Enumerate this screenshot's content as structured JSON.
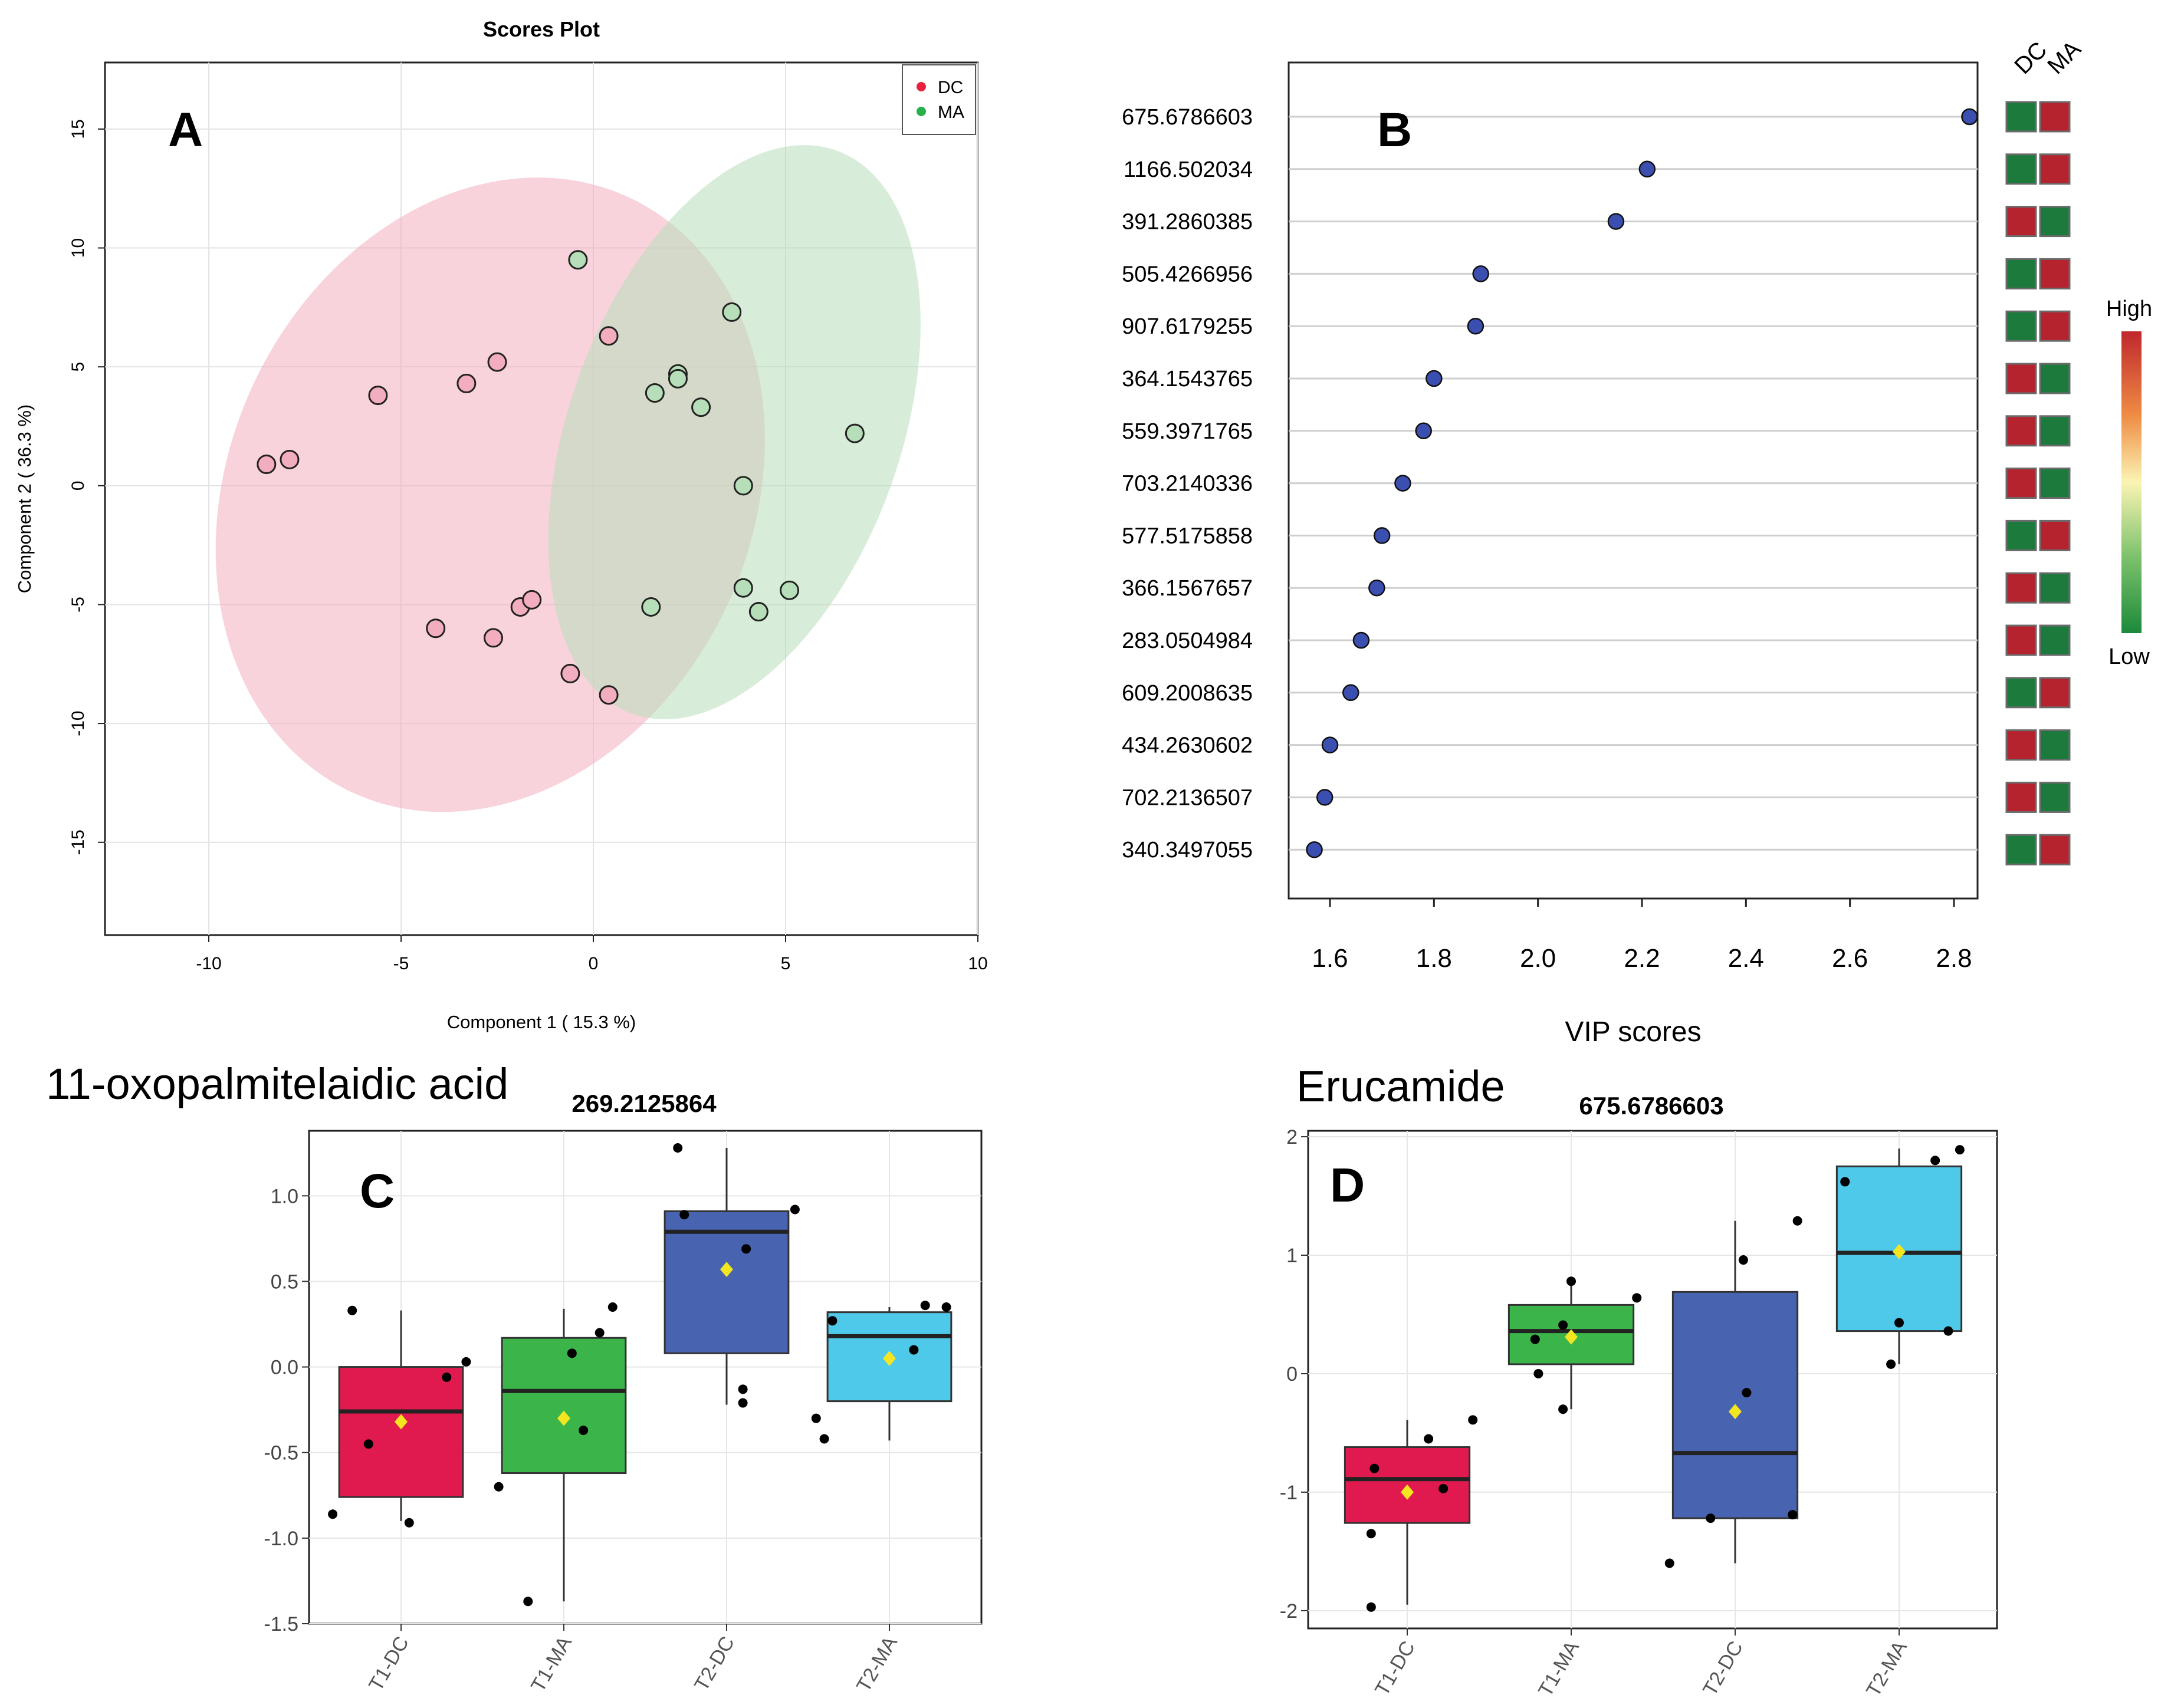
{
  "chart_data": [
    {
      "panel": "A",
      "type": "scatter",
      "title": "Scores Plot",
      "xlabel": "Component 1 ( 15.3 %)",
      "ylabel": "Component 2 ( 36.3 %)",
      "xlim": [
        -12.7,
        10.0
      ],
      "ylim": [
        -18.9,
        17.8
      ],
      "xticks": [
        "-10",
        "-5",
        "0",
        "5",
        "10"
      ],
      "xtick_values": [
        -10,
        -5,
        0,
        5,
        10
      ],
      "yticks": [
        "-15",
        "-10",
        "-5",
        "0",
        "5",
        "10",
        "15"
      ],
      "ytick_values": [
        -15,
        -10,
        -5,
        0,
        5,
        10,
        15
      ],
      "grid": true,
      "legend_position": "top-right",
      "series": [
        {
          "name": "DC",
          "color": "#e8213f",
          "fill": "#f2aebe",
          "points": [
            [
              -8.5,
              0.9
            ],
            [
              -7.9,
              1.1
            ],
            [
              -5.6,
              3.8
            ],
            [
              -3.3,
              4.3
            ],
            [
              -2.5,
              5.2
            ],
            [
              0.4,
              6.3
            ],
            [
              -4.1,
              -6.0
            ],
            [
              -2.6,
              -6.4
            ],
            [
              -1.9,
              -5.1
            ],
            [
              -1.6,
              -4.8
            ],
            [
              -0.6,
              -7.9
            ],
            [
              0.4,
              -8.8
            ]
          ],
          "ellipse": {
            "cx": -2.68,
            "cy": -0.38,
            "rx": 6.8,
            "ry": 13.8,
            "rotation_deg": 25
          }
        },
        {
          "name": "MA",
          "color": "#25b04a",
          "fill": "#b6dfb9",
          "points": [
            [
              -0.4,
              9.5
            ],
            [
              3.6,
              7.3
            ],
            [
              2.2,
              4.7
            ],
            [
              2.2,
              4.5
            ],
            [
              1.6,
              3.9
            ],
            [
              2.8,
              3.3
            ],
            [
              6.8,
              2.2
            ],
            [
              3.9,
              0.0
            ],
            [
              1.5,
              -5.1
            ],
            [
              3.9,
              -4.3
            ],
            [
              4.3,
              -5.3
            ],
            [
              5.1,
              -4.4
            ]
          ],
          "ellipse": {
            "cx": 3.67,
            "cy": 2.25,
            "rx": 4.3,
            "ry": 12.6,
            "rotation_deg": 20
          }
        }
      ]
    },
    {
      "panel": "B",
      "type": "scatter",
      "xlabel": "VIP scores",
      "xlim": [
        1.52,
        2.88
      ],
      "xticks": [
        "1.6",
        "1.8",
        "2.0",
        "2.2",
        "2.4",
        "2.6",
        "2.8"
      ],
      "xtick_values": [
        1.6,
        1.8,
        2.0,
        2.2,
        2.4,
        2.6,
        2.8
      ],
      "heatmap_columns": [
        "DC",
        "MA"
      ],
      "legend_high": "High",
      "legend_low": "Low",
      "colors": {
        "high": "#b5232f",
        "low": "#1c7a3d",
        "point": "#3b4fb0"
      },
      "features": [
        "675.6786603",
        "1166.502034",
        "391.2860385",
        "505.4266956",
        "907.6179255",
        "364.1543765",
        "559.3971765",
        "703.2140336",
        "577.5175858",
        "366.1567657",
        "283.0504984",
        "609.2008635",
        "434.2630602",
        "702.2136507",
        "340.3497055"
      ],
      "values": [
        2.83,
        2.21,
        2.15,
        1.89,
        1.88,
        1.8,
        1.78,
        1.74,
        1.7,
        1.69,
        1.66,
        1.64,
        1.6,
        1.59,
        1.57
      ],
      "dc_high": [
        false,
        false,
        true,
        false,
        false,
        true,
        true,
        true,
        false,
        true,
        true,
        false,
        true,
        true,
        false
      ]
    },
    {
      "panel": "C",
      "type": "box",
      "compound": "11-oxopalmitelaidic acid",
      "title": "269.2125864",
      "categories": [
        "T1-DC",
        "T1-MA",
        "T2-DC",
        "T2-MA"
      ],
      "colors": [
        "#e01a4f",
        "#3bb54a",
        "#4863b0",
        "#4ec9ea"
      ],
      "ylim": [
        -1.5,
        1.38
      ],
      "yticks": [
        "-1.5",
        "-1.0",
        "-0.5",
        "0.0",
        "0.5",
        "1.0"
      ],
      "ytick_values": [
        -1.5,
        -1.0,
        -0.5,
        0.0,
        0.5,
        1.0
      ],
      "boxes": [
        {
          "whisker_low": -0.9,
          "q1": -0.76,
          "median": -0.26,
          "q3": 0.0,
          "whisker_high": 0.33,
          "mean": -0.32
        },
        {
          "whisker_low": -1.37,
          "q1": -0.62,
          "median": -0.14,
          "q3": 0.17,
          "whisker_high": 0.34,
          "mean": -0.3
        },
        {
          "whisker_low": -0.22,
          "q1": 0.08,
          "median": 0.79,
          "q3": 0.91,
          "whisker_high": 1.28,
          "mean": 0.57
        },
        {
          "whisker_low": -0.43,
          "q1": -0.2,
          "median": 0.18,
          "q3": 0.32,
          "whisker_high": 0.35,
          "mean": 0.05
        }
      ],
      "points": [
        [
          [
            -0.3,
            0.33
          ],
          [
            -0.2,
            -0.45
          ],
          [
            0.05,
            -0.91
          ],
          [
            0.28,
            -0.06
          ],
          [
            0.4,
            0.03
          ],
          [
            -0.42,
            -0.86
          ]
        ],
        [
          [
            -0.4,
            -0.7
          ],
          [
            -0.22,
            -1.37
          ],
          [
            0.05,
            0.08
          ],
          [
            0.12,
            -0.37
          ],
          [
            0.22,
            0.2
          ],
          [
            0.3,
            0.35
          ]
        ],
        [
          [
            -0.3,
            1.28
          ],
          [
            -0.26,
            0.89
          ],
          [
            0.12,
            0.69
          ],
          [
            0.1,
            -0.13
          ],
          [
            0.1,
            -0.21
          ],
          [
            0.42,
            0.92
          ]
        ],
        [
          [
            -0.45,
            -0.3
          ],
          [
            -0.4,
            -0.42
          ],
          [
            -0.35,
            0.27
          ],
          [
            0.15,
            0.1
          ],
          [
            0.22,
            0.36
          ],
          [
            0.35,
            0.35
          ]
        ]
      ]
    },
    {
      "panel": "D",
      "type": "box",
      "compound": "Erucamide",
      "title": "675.6786603",
      "categories": [
        "T1-DC",
        "T1-MA",
        "T2-DC",
        "T2-MA"
      ],
      "colors": [
        "#e01a4f",
        "#3bb54a",
        "#4863b0",
        "#4ec9ea"
      ],
      "ylim": [
        -2.15,
        2.05
      ],
      "yticks": [
        "-2",
        "-1",
        "0",
        "1",
        "2"
      ],
      "ytick_values": [
        -2,
        -1,
        0,
        1,
        2
      ],
      "boxes": [
        {
          "whisker_low": -1.95,
          "q1": -1.26,
          "median": -0.89,
          "q3": -0.62,
          "whisker_high": -0.39,
          "mean": -1.0
        },
        {
          "whisker_low": -0.3,
          "q1": 0.08,
          "median": 0.36,
          "q3": 0.58,
          "whisker_high": 0.78,
          "mean": 0.31
        },
        {
          "whisker_low": -1.6,
          "q1": -1.22,
          "median": -0.67,
          "q3": 0.69,
          "whisker_high": 1.29,
          "mean": -0.32
        },
        {
          "whisker_low": 0.08,
          "q1": 0.36,
          "median": 1.02,
          "q3": 1.75,
          "whisker_high": 1.9,
          "mean": 1.03
        }
      ],
      "points": [
        [
          [
            -0.2,
            -0.8
          ],
          [
            -0.22,
            -1.35
          ],
          [
            -0.22,
            -1.97
          ],
          [
            0.13,
            -0.55
          ],
          [
            0.22,
            -0.97
          ],
          [
            0.4,
            -0.39
          ]
        ],
        [
          [
            -0.22,
            0.29
          ],
          [
            -0.2,
            0.0
          ],
          [
            -0.05,
            -0.3
          ],
          [
            -0.05,
            0.41
          ],
          [
            0.0,
            0.78
          ],
          [
            0.4,
            0.64
          ]
        ],
        [
          [
            -0.4,
            -1.6
          ],
          [
            -0.15,
            -1.22
          ],
          [
            0.05,
            0.96
          ],
          [
            0.07,
            -0.16
          ],
          [
            0.35,
            -1.19
          ],
          [
            0.38,
            1.29
          ]
        ],
        [
          [
            -0.33,
            1.62
          ],
          [
            -0.05,
            0.08
          ],
          [
            0.0,
            0.43
          ],
          [
            0.22,
            1.8
          ],
          [
            0.3,
            0.36
          ],
          [
            0.37,
            1.89
          ]
        ]
      ]
    }
  ]
}
